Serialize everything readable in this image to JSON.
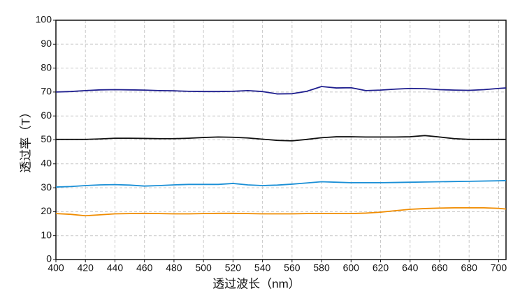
{
  "chart_data": {
    "type": "line",
    "x_label": "透过波长（nm）",
    "y_label": "透过率（T）",
    "x": [
      400,
      410,
      420,
      430,
      440,
      450,
      460,
      470,
      480,
      490,
      500,
      510,
      520,
      530,
      540,
      550,
      560,
      570,
      580,
      590,
      600,
      610,
      620,
      630,
      640,
      650,
      660,
      670,
      680,
      690,
      700,
      705
    ],
    "series": [
      {
        "color": "#1f1f8f",
        "values": [
          70,
          70.2,
          70.6,
          70.9,
          71,
          70.9,
          70.8,
          70.6,
          70.5,
          70.3,
          70.2,
          70.2,
          70.3,
          70.6,
          70.2,
          69.2,
          69.3,
          70.3,
          72.3,
          71.7,
          71.8,
          70.6,
          70.8,
          71.2,
          71.5,
          71.4,
          71,
          70.8,
          70.7,
          71,
          71.5,
          71.7
        ]
      },
      {
        "color": "#111111",
        "values": [
          50.2,
          50.2,
          50.2,
          50.4,
          50.7,
          50.7,
          50.6,
          50.5,
          50.5,
          50.7,
          51,
          51.2,
          51.1,
          50.8,
          50.3,
          49.8,
          49.6,
          50.2,
          50.9,
          51.3,
          51.3,
          51.2,
          51.2,
          51.2,
          51.3,
          51.8,
          51.2,
          50.5,
          50.2,
          50.2,
          50.2,
          50.2
        ]
      },
      {
        "color": "#1a8fd6",
        "values": [
          30.3,
          30.5,
          30.9,
          31.2,
          31.3,
          31.1,
          30.7,
          30.9,
          31.2,
          31.4,
          31.4,
          31.4,
          31.8,
          31.2,
          30.9,
          31.1,
          31.5,
          32,
          32.5,
          32.3,
          32.1,
          32.1,
          32.1,
          32.2,
          32.3,
          32.4,
          32.5,
          32.6,
          32.7,
          32.8,
          32.9,
          33
        ]
      },
      {
        "color": "#f08c00",
        "values": [
          19.2,
          18.9,
          18.3,
          18.7,
          19.1,
          19.2,
          19.3,
          19.2,
          19.1,
          19.1,
          19.2,
          19.3,
          19.3,
          19.2,
          19.1,
          19.1,
          19.1,
          19.2,
          19.2,
          19.2,
          19.2,
          19.4,
          19.8,
          20.4,
          21,
          21.3,
          21.5,
          21.6,
          21.6,
          21.6,
          21.4,
          21.1
        ]
      }
    ],
    "xlim": [
      400,
      705
    ],
    "xticks": [
      400,
      420,
      440,
      460,
      480,
      500,
      520,
      540,
      560,
      580,
      600,
      620,
      640,
      660,
      680,
      700
    ],
    "ylim": [
      0,
      100
    ],
    "yticks": [
      0,
      10,
      20,
      30,
      40,
      50,
      60,
      70,
      80,
      90,
      100
    ],
    "grid": true
  }
}
